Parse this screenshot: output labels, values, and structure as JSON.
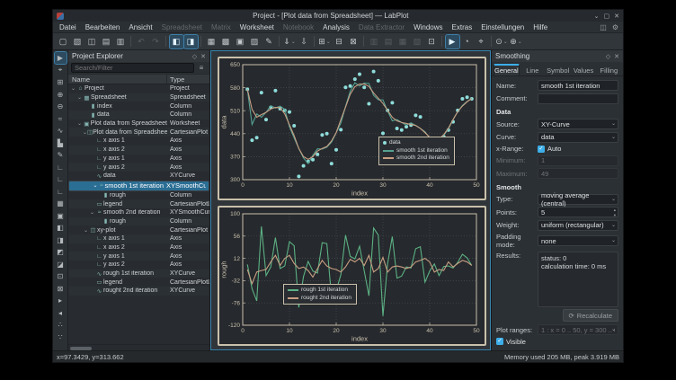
{
  "window": {
    "title": "Project - [Plot data from Spreadsheet] — LabPlot",
    "controls": {
      "minimize": "⌄",
      "maximize": "▢",
      "close": "✕"
    }
  },
  "menubar": {
    "items": [
      {
        "label": "Datei",
        "enabled": true
      },
      {
        "label": "Bearbeiten",
        "enabled": true
      },
      {
        "label": "Ansicht",
        "enabled": true
      },
      {
        "label": "Spreadsheet",
        "enabled": false
      },
      {
        "label": "Matrix",
        "enabled": false
      },
      {
        "label": "Worksheet",
        "enabled": true
      },
      {
        "label": "Notebook",
        "enabled": false
      },
      {
        "label": "Analysis",
        "enabled": true
      },
      {
        "label": "Data Extractor",
        "enabled": false
      },
      {
        "label": "Windows",
        "enabled": true
      },
      {
        "label": "Extras",
        "enabled": true
      },
      {
        "label": "Einstellungen",
        "enabled": true
      },
      {
        "label": "Hilfe",
        "enabled": true
      }
    ],
    "right_icons": [
      {
        "name": "dock-options-icon",
        "glyph": "◫"
      },
      {
        "name": "configure-icon",
        "glyph": "⚙"
      }
    ]
  },
  "toolbar": {
    "groups": [
      {
        "items": [
          {
            "name": "new-project-icon",
            "glyph": "▢"
          },
          {
            "name": "open-project-icon",
            "glyph": "▧"
          },
          {
            "name": "save-project-icon",
            "glyph": "◫"
          },
          {
            "name": "print-icon",
            "glyph": "▤"
          },
          {
            "name": "print-preview-icon",
            "glyph": "▥"
          }
        ]
      },
      {
        "items": [
          {
            "name": "undo-icon",
            "glyph": "↶",
            "dim": true
          },
          {
            "name": "redo-icon",
            "glyph": "↷",
            "dim": true
          }
        ]
      },
      {
        "items": [
          {
            "name": "toggle-project-explorer-icon",
            "glyph": "◧",
            "pressed": true
          },
          {
            "name": "toggle-properties-dock-icon",
            "glyph": "◨",
            "pressed": true
          }
        ]
      },
      {
        "items": [
          {
            "name": "new-workbook-icon",
            "glyph": "▦"
          },
          {
            "name": "new-spreadsheet-icon",
            "glyph": "▩"
          },
          {
            "name": "new-matrix-icon",
            "glyph": "▣"
          },
          {
            "name": "new-worksheet-icon",
            "glyph": "▨"
          },
          {
            "name": "new-note-icon",
            "glyph": "✎"
          }
        ]
      },
      {
        "items": [
          {
            "name": "import-file-icon",
            "glyph": "⇓",
            "dropdown": true
          },
          {
            "name": "import-sql-icon",
            "glyph": "⇩"
          }
        ]
      },
      {
        "items": [
          {
            "name": "add-plot-icon",
            "glyph": "⊞",
            "dropdown": true
          },
          {
            "name": "add-text-icon",
            "glyph": "⊟"
          },
          {
            "name": "add-image-icon",
            "glyph": "⊠"
          }
        ]
      },
      {
        "items": [
          {
            "name": "vertical-layout-icon",
            "glyph": "▥",
            "dim": true
          },
          {
            "name": "horizontal-layout-icon",
            "glyph": "▤",
            "dim": true
          },
          {
            "name": "grid-layout-icon",
            "glyph": "▦",
            "dim": true
          },
          {
            "name": "break-layout-icon",
            "glyph": "▧",
            "dim": true
          },
          {
            "name": "fit-page-icon",
            "glyph": "⊡"
          }
        ]
      },
      {
        "items": [
          {
            "name": "select-mode-icon",
            "glyph": "▶",
            "pressed": true
          },
          {
            "name": "navigate-mode-icon",
            "glyph": "◔"
          },
          {
            "name": "zoom-select-mode-icon",
            "glyph": "⌖"
          }
        ]
      },
      {
        "items": [
          {
            "name": "zoom-icon",
            "glyph": "⊙",
            "dropdown": true
          },
          {
            "name": "magnify-icon",
            "glyph": "⊕",
            "dropdown": true
          }
        ]
      }
    ]
  },
  "left_toolbar": {
    "icons": [
      {
        "name": "tool-select-icon",
        "glyph": "▶",
        "pressed": true
      },
      {
        "name": "tool-crosshair-icon",
        "glyph": "⌖"
      },
      {
        "name": "tool-zoom-icon",
        "glyph": "⊞"
      },
      {
        "name": "tool-zoom-in-icon",
        "glyph": "⊕"
      },
      {
        "name": "tool-zoom-out-icon",
        "glyph": "⊖"
      },
      {
        "name": "tool-trace-icon",
        "glyph": "≈"
      },
      {
        "name": "tool-xy-curve-icon",
        "glyph": "∿"
      },
      {
        "name": "tool-histogram-icon",
        "glyph": "▙"
      },
      {
        "name": "tool-draw-icon",
        "glyph": "✎"
      },
      {
        "name": "tool-axis-horizontal-icon",
        "glyph": "∟"
      },
      {
        "name": "tool-axis-vertical-icon",
        "glyph": "∟"
      },
      {
        "name": "tool-axis-custom-icon",
        "glyph": "∟"
      },
      {
        "name": "tool-spreadsheet-icon",
        "glyph": "▦"
      },
      {
        "name": "tool-worksheet-icon",
        "glyph": "▣"
      },
      {
        "name": "tool-layout-left-icon",
        "glyph": "◧"
      },
      {
        "name": "tool-layout-right-icon",
        "glyph": "◨"
      },
      {
        "name": "tool-layout-top-icon",
        "glyph": "◩"
      },
      {
        "name": "tool-layout-bottom-icon",
        "glyph": "◪"
      },
      {
        "name": "tool-plot-area-icon",
        "glyph": "⊡"
      },
      {
        "name": "tool-legend-icon",
        "glyph": "⊠"
      },
      {
        "name": "tool-forward-icon",
        "glyph": "▸"
      },
      {
        "name": "tool-back-icon",
        "glyph": "◂"
      },
      {
        "name": "tool-misc-1-icon",
        "glyph": "∴"
      },
      {
        "name": "tool-misc-2-icon",
        "glyph": "∵"
      }
    ]
  },
  "explorer": {
    "title": "Project Explorer",
    "float_icon": "◇",
    "close_icon": "✕",
    "search_placeholder": "Search/Filter",
    "filter_icon": "≡",
    "columns": [
      "Name",
      "Type"
    ],
    "icon_glyphs": {
      "project": "⌂",
      "spreadsheet": "▦",
      "column": "▮",
      "worksheet": "▣",
      "plot": "◫",
      "axis": "∟",
      "curve": "∿",
      "smooth": "≈",
      "legend": "▭"
    },
    "rows": [
      {
        "name": "Project",
        "type": "Project",
        "depth": 0,
        "icon": "project",
        "children": true
      },
      {
        "name": "Spreadsheet",
        "type": "Spreadsheet",
        "depth": 1,
        "icon": "spreadsheet",
        "children": true
      },
      {
        "name": "index",
        "type": "Column",
        "depth": 2,
        "icon": "column"
      },
      {
        "name": "data",
        "type": "Column",
        "depth": 2,
        "icon": "column"
      },
      {
        "name": "Plot data from Spreadsheet",
        "type": "Worksheet",
        "depth": 1,
        "icon": "worksheet",
        "children": true
      },
      {
        "name": "Plot data from Spreadsheet",
        "type": "CartesianPlot",
        "depth": 2,
        "icon": "plot",
        "children": true
      },
      {
        "name": "x axis 1",
        "type": "Axis",
        "depth": 3,
        "icon": "axis"
      },
      {
        "name": "x axis 2",
        "type": "Axis",
        "depth": 3,
        "icon": "axis"
      },
      {
        "name": "y axis 1",
        "type": "Axis",
        "depth": 3,
        "icon": "axis"
      },
      {
        "name": "y axis 2",
        "type": "Axis",
        "depth": 3,
        "icon": "axis"
      },
      {
        "name": "data",
        "type": "XYCurve",
        "depth": 3,
        "icon": "curve"
      },
      {
        "name": "smooth 1st iteration",
        "type": "XYSmoothCurve",
        "depth": 3,
        "icon": "smooth",
        "children": true,
        "selected": true
      },
      {
        "name": "rough",
        "type": "Column",
        "depth": 4,
        "icon": "column"
      },
      {
        "name": "legend",
        "type": "CartesianPlotLegend",
        "depth": 3,
        "icon": "legend"
      },
      {
        "name": "smooth 2nd iteration",
        "type": "XYSmoothCurve",
        "depth": 3,
        "icon": "smooth",
        "children": true
      },
      {
        "name": "rough",
        "type": "Column",
        "depth": 4,
        "icon": "column"
      },
      {
        "name": "xy-plot",
        "type": "CartesianPlot",
        "depth": 2,
        "icon": "plot",
        "children": true
      },
      {
        "name": "x axis 1",
        "type": "Axis",
        "depth": 3,
        "icon": "axis"
      },
      {
        "name": "x axis 2",
        "type": "Axis",
        "depth": 3,
        "icon": "axis"
      },
      {
        "name": "y axis 1",
        "type": "Axis",
        "depth": 3,
        "icon": "axis"
      },
      {
        "name": "y axis 2",
        "type": "Axis",
        "depth": 3,
        "icon": "axis"
      },
      {
        "name": "rough 1st iteration",
        "type": "XYCurve",
        "depth": 3,
        "icon": "curve"
      },
      {
        "name": "legend",
        "type": "CartesianPlotLegend",
        "depth": 3,
        "icon": "legend"
      },
      {
        "name": "rought 2nd iteration",
        "type": "XYCurve",
        "depth": 3,
        "icon": "curve"
      }
    ]
  },
  "chart_data": [
    {
      "type": "scatter",
      "xlabel": "index",
      "ylabel": "data",
      "xlim": [
        0,
        50
      ],
      "ylim": [
        300,
        650
      ],
      "xticks": [
        0,
        10,
        20,
        30,
        40,
        50
      ],
      "yticks": [
        300,
        370,
        440,
        510,
        580,
        650
      ],
      "grid": true,
      "x_start": 1,
      "legend": {
        "x": 0.6,
        "y": 0.56
      },
      "series": [
        {
          "name": "data",
          "type": "scatter",
          "color": "#8edcda",
          "values": [
            575,
            420,
            428,
            565,
            483,
            520,
            571,
            516,
            511,
            506,
            464,
            310,
            342,
            355,
            361,
            377,
            436,
            440,
            349,
            391,
            452,
            581,
            585,
            606,
            621,
            581,
            531,
            629,
            601,
            441,
            511,
            534,
            456,
            451,
            461,
            466,
            496,
            491,
            411,
            414,
            416,
            401,
            431,
            451,
            476,
            511,
            546,
            551,
            546
          ]
        },
        {
          "name": "smooth 1st iteration",
          "type": "line",
          "color": "#55a193",
          "values": [
            575,
            468,
            500,
            490,
            505,
            525,
            518,
            524,
            514,
            461,
            427,
            395,
            366,
            349,
            374,
            394,
            393,
            399,
            414,
            443,
            472,
            523,
            569,
            595,
            585,
            594,
            593,
            557,
            543,
            543,
            509,
            479,
            483,
            474,
            466,
            473,
            465,
            456,
            446,
            427,
            415,
            423,
            435,
            454,
            483,
            507,
            526,
            538,
            548
          ]
        },
        {
          "name": "smooth 2nd iteration",
          "type": "line",
          "color": "#c89f83",
          "values": [
            575,
            514,
            490,
            498,
            505,
            515,
            520,
            519,
            500,
            467,
            434,
            395,
            370,
            362,
            370,
            387,
            395,
            401,
            418,
            443,
            483,
            521,
            560,
            583,
            591,
            591,
            584,
            564,
            548,
            532,
            511,
            490,
            479,
            474,
            471,
            468,
            465,
            456,
            443,
            429,
            422,
            424,
            437,
            457,
            483,
            507,
            524,
            537,
            547
          ]
        }
      ]
    },
    {
      "type": "line",
      "xlabel": "index",
      "ylabel": "rough",
      "xlim": [
        0,
        50
      ],
      "ylim": [
        -120,
        100
      ],
      "xticks": [
        0,
        10,
        20,
        30,
        40,
        50
      ],
      "yticks": [
        -120,
        -76,
        -32,
        12,
        56,
        100
      ],
      "grid": true,
      "x_start": 1,
      "legend": {
        "x": 0.24,
        "y": 0.56
      },
      "series": [
        {
          "name": "rough 1st iteration",
          "type": "line",
          "color": "#5cb184",
          "values": [
            0,
            -48,
            -72,
            75,
            -22,
            -5,
            53,
            -8,
            -3,
            45,
            37,
            -85,
            -24,
            6,
            -13,
            -17,
            43,
            41,
            -65,
            -52,
            -20,
            58,
            16,
            11,
            36,
            -13,
            -62,
            72,
            58,
            -102,
            2,
            55,
            -27,
            -23,
            -5,
            -7,
            31,
            35,
            -35,
            -13,
            1,
            -22,
            -4,
            -3,
            -7,
            4,
            20,
            13,
            -2
          ]
        },
        {
          "name": "rought 2nd iteration",
          "type": "line",
          "color": "#c89f83",
          "values": [
            -10,
            -38,
            -15,
            -12,
            -10,
            5,
            18,
            -2,
            12,
            18,
            2,
            -8,
            -5,
            -12,
            -25,
            -8,
            8,
            -3,
            -8,
            -10,
            -15,
            -5,
            10,
            5,
            12,
            -2,
            18,
            -15,
            -8,
            14,
            -15,
            -5,
            -3,
            -5,
            -8,
            -5,
            5,
            8,
            12,
            5,
            -15,
            -10,
            -12,
            5,
            -5,
            2,
            8,
            5,
            -2
          ]
        }
      ]
    }
  ],
  "dock": {
    "title": "Smoothing",
    "float_icon": "◇",
    "close_icon": "✕",
    "tabs": [
      "General",
      "Line",
      "Symbol",
      "Values",
      "Filling"
    ],
    "active_tab": "General",
    "name_label": "Name:",
    "name_value": "smooth 1st iteration",
    "comment_label": "Comment:",
    "comment_value": "",
    "data_section": "Data",
    "source_label": "Source:",
    "source_value": "XY-Curve",
    "curve_label": "Curve:",
    "curve_value": "data",
    "xrange_label": "x-Range:",
    "auto_label": "Auto",
    "auto_checked": true,
    "minimum_label": "Minimum:",
    "minimum_value": "1",
    "maximum_label": "Maximum:",
    "maximum_value": "49",
    "smooth_section": "Smooth",
    "type_label": "Type:",
    "type_value": "moving average (central)",
    "points_label": "Points:",
    "points_value": "5",
    "weight_label": "Weight:",
    "weight_value": "uniform (rectangular)",
    "padding_label": "Padding mode:",
    "padding_value": "none",
    "results_label": "Results:",
    "results_line1": "status: 0",
    "results_line2": "calculation time: 0 ms",
    "recalculate_label": "Recalculate",
    "recalculate_icon": "⟳",
    "plot_ranges_label": "Plot ranges:",
    "plot_ranges_value": "1 : x = 0 .. 50, y = 300 .. 650",
    "visible_label": "Visible",
    "visible_checked": true,
    "footer_icons": [
      {
        "name": "load-template-icon",
        "glyph": "▤"
      },
      {
        "name": "save-template-icon",
        "glyph": "◫"
      },
      {
        "name": "save-default-icon",
        "glyph": "▣"
      }
    ]
  },
  "statusbar": {
    "coordinates": "x=97.3429, y=313.662",
    "memory": "Memory used 205 MB, peak 3.919 MB"
  },
  "colors": {
    "accent": "#3daee9",
    "selection": "#2b6e94",
    "plot_frame": "#c9c0ab",
    "scatter": "#8edcda",
    "smooth1": "#55a193",
    "smooth2": "#c89f83",
    "rough1": "#5cb184"
  }
}
